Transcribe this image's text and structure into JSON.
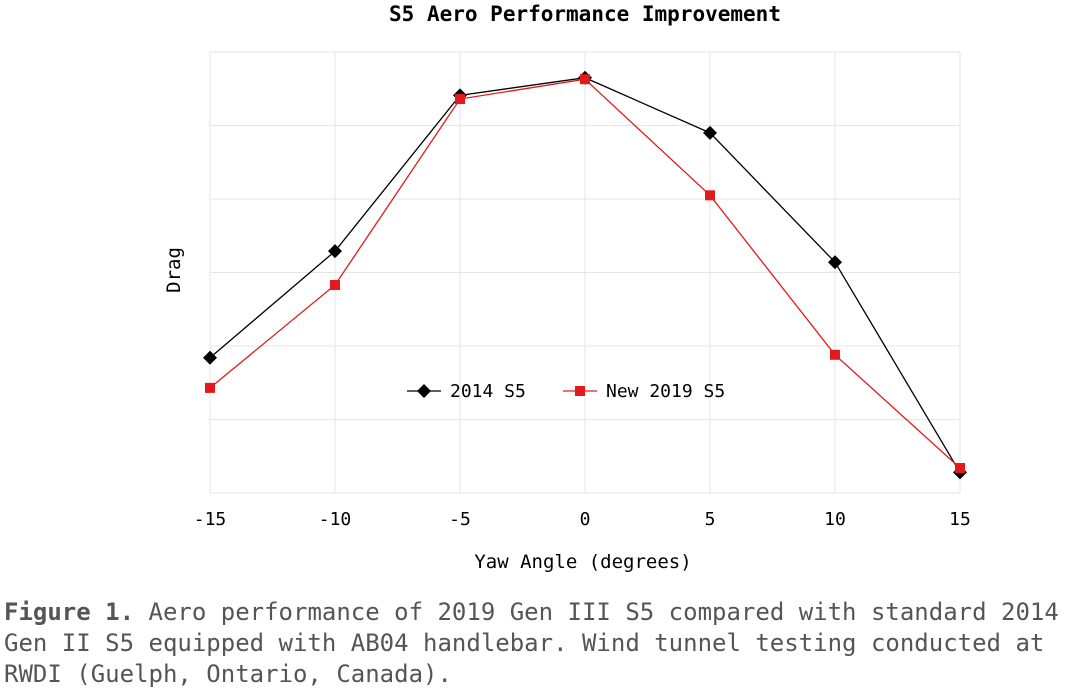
{
  "chart_data": {
    "type": "line",
    "title": "S5 Aero Performance Improvement",
    "xlabel": "Yaw Angle (degrees)",
    "ylabel": "Drag",
    "x": [
      -15,
      -10,
      -5,
      0,
      5,
      10,
      15
    ],
    "xticks": [
      "-15",
      "-10",
      "-5",
      "0",
      "5",
      "10",
      "15"
    ],
    "xlim": [
      -15,
      15
    ],
    "ylim": [
      0,
      6
    ],
    "yticks_labeled": false,
    "grid": true,
    "legend_position": "bottom-center",
    "series": [
      {
        "name": "2014 S5",
        "color": "#000000",
        "marker": "diamond",
        "values": [
          1.84,
          3.29,
          5.41,
          5.65,
          4.9,
          3.14,
          0.28
        ]
      },
      {
        "name": "New 2019 S5",
        "color": "#e31a1c",
        "marker": "square",
        "values": [
          1.43,
          2.83,
          5.36,
          5.63,
          4.05,
          1.88,
          0.34
        ]
      }
    ]
  },
  "caption": {
    "label": "Figure 1.",
    "text": " Aero performance of 2019 Gen III S5 compared with standard 2014 Gen II S5 equipped with AB04 handlebar. Wind tunnel testing conducted at RWDI (Guelph, Ontario, Canada)."
  }
}
